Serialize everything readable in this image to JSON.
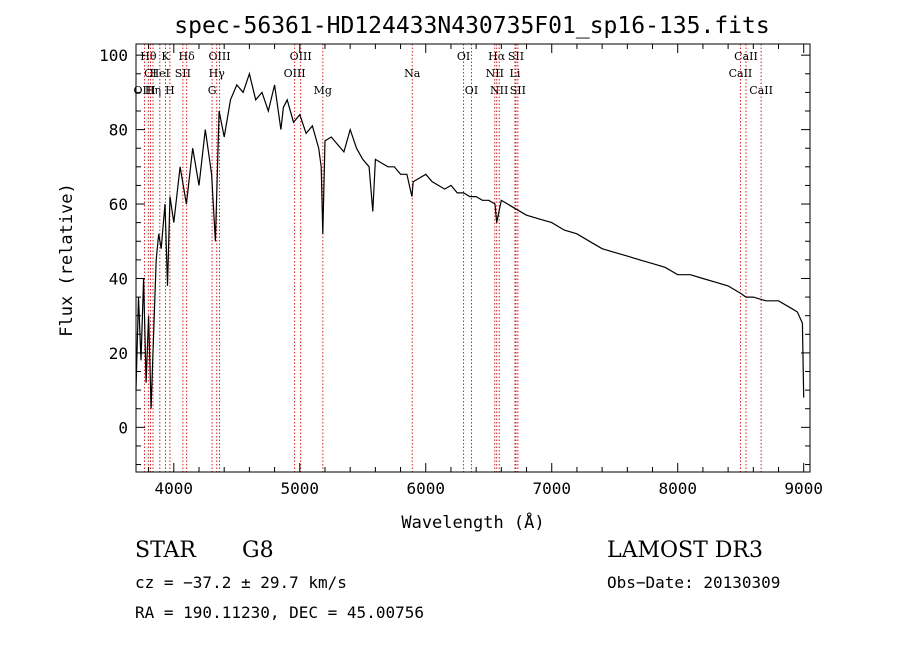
{
  "chart_data": {
    "type": "line",
    "title": "spec-56361-HD124433N430735F01_sp16-135.fits",
    "xlabel": "Wavelength (Å)",
    "ylabel": "Flux (relative)",
    "xlim": [
      3700,
      9050
    ],
    "ylim": [
      -12,
      103
    ],
    "x_ticks": [
      4000,
      5000,
      6000,
      7000,
      8000,
      9000
    ],
    "y_ticks": [
      0,
      20,
      40,
      60,
      80,
      100
    ],
    "x": [
      3700,
      3720,
      3740,
      3760,
      3780,
      3800,
      3820,
      3840,
      3860,
      3880,
      3900,
      3930,
      3950,
      3970,
      4000,
      4050,
      4100,
      4150,
      4200,
      4250,
      4300,
      4330,
      4360,
      4400,
      4450,
      4500,
      4550,
      4600,
      4650,
      4700,
      4750,
      4800,
      4850,
      4870,
      4900,
      4950,
      5000,
      5050,
      5100,
      5150,
      5170,
      5183,
      5200,
      5250,
      5300,
      5350,
      5400,
      5450,
      5500,
      5550,
      5580,
      5600,
      5650,
      5700,
      5750,
      5800,
      5850,
      5890,
      5900,
      5950,
      6000,
      6050,
      6100,
      6150,
      6200,
      6250,
      6300,
      6350,
      6400,
      6450,
      6500,
      6550,
      6563,
      6600,
      6650,
      6700,
      6800,
      6900,
      7000,
      7100,
      7200,
      7300,
      7400,
      7500,
      7600,
      7700,
      7800,
      7900,
      8000,
      8100,
      8200,
      8300,
      8400,
      8500,
      8542,
      8600,
      8700,
      8800,
      8900,
      8950,
      8990,
      9000
    ],
    "y": [
      10,
      35,
      18,
      40,
      12,
      30,
      5,
      25,
      45,
      52,
      48,
      60,
      38,
      62,
      55,
      70,
      60,
      75,
      65,
      80,
      68,
      50,
      85,
      78,
      88,
      92,
      90,
      95,
      88,
      90,
      85,
      92,
      80,
      86,
      88,
      82,
      84,
      79,
      81,
      75,
      70,
      52,
      77,
      78,
      76,
      74,
      80,
      75,
      72,
      70,
      58,
      72,
      71,
      70,
      70,
      68,
      68,
      62,
      66,
      67,
      68,
      66,
      65,
      64,
      65,
      63,
      63,
      62,
      62,
      61,
      61,
      60,
      55,
      61,
      60,
      59,
      57,
      56,
      55,
      53,
      52,
      50,
      48,
      47,
      46,
      45,
      44,
      43,
      41,
      41,
      40,
      39,
      38,
      36,
      35,
      35,
      34,
      34,
      32,
      31,
      28,
      8
    ],
    "lines": [
      {
        "label": "Hθ",
        "wavelength": 3798,
        "row": 0
      },
      {
        "label": "CI",
        "wavelength": 3815,
        "row": 1
      },
      {
        "label": "OIII",
        "wavelength": 3768,
        "row": 2
      },
      {
        "label": "K",
        "wavelength": 3934,
        "row": 0
      },
      {
        "label": "HeI",
        "wavelength": 3889,
        "row": 1
      },
      {
        "label": "Hη",
        "wavelength": 3835,
        "row": 2
      },
      {
        "label": "Hδ",
        "wavelength": 4102,
        "row": 0
      },
      {
        "label": "SII",
        "wavelength": 4072,
        "row": 1
      },
      {
        "label": "H",
        "wavelength": 3969,
        "row": 2
      },
      {
        "label": "OIII",
        "wavelength": 4363,
        "row": 0
      },
      {
        "label": "Hγ",
        "wavelength": 4341,
        "row": 1
      },
      {
        "label": "G",
        "wavelength": 4304,
        "row": 2
      },
      {
        "label": "OIII",
        "wavelength": 5007,
        "row": 0
      },
      {
        "label": "OIII",
        "wavelength": 4959,
        "row": 1
      },
      {
        "label": "Mg",
        "wavelength": 5183,
        "row": 2
      },
      {
        "label": "Na",
        "wavelength": 5893,
        "row": 1
      },
      {
        "label": "OI",
        "wavelength": 6300,
        "row": 0
      },
      {
        "label": "OI",
        "wavelength": 6363,
        "row": 2
      },
      {
        "label": "Hα",
        "wavelength": 6563,
        "row": 0
      },
      {
        "label": "SII",
        "wavelength": 6716,
        "row": 0
      },
      {
        "label": "NII",
        "wavelength": 6548,
        "row": 1
      },
      {
        "label": "Li",
        "wavelength": 6708,
        "row": 1
      },
      {
        "label": "NII",
        "wavelength": 6583,
        "row": 2
      },
      {
        "label": "SII",
        "wavelength": 6731,
        "row": 2
      },
      {
        "label": "CaII",
        "wavelength": 8542,
        "row": 0
      },
      {
        "label": "CaII",
        "wavelength": 8498,
        "row": 1
      },
      {
        "label": "CaII",
        "wavelength": 8662,
        "row": 2
      }
    ],
    "line_color": "#d42020"
  },
  "info": {
    "object_class": "STAR",
    "subclass": "G8",
    "survey": "LAMOST DR3",
    "redshift": "cz = −37.2 ± 29.7 km/s",
    "obs_date": "Obs−Date: 20130309",
    "coords": "RA = 190.11230, DEC =  45.00756"
  }
}
